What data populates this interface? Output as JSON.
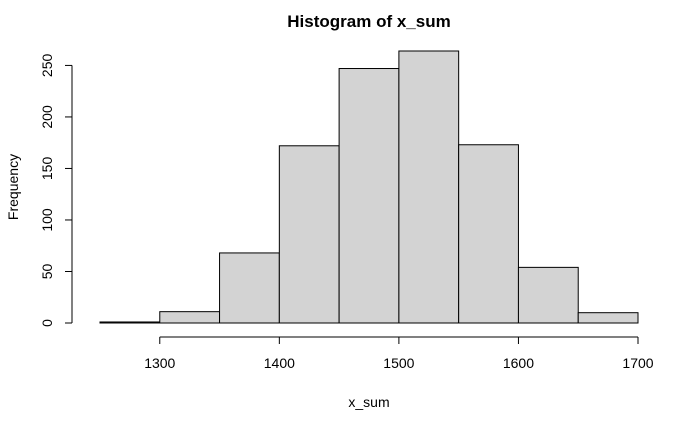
{
  "chart_data": {
    "type": "bar",
    "title": "Histogram of x_sum",
    "xlabel": "x_sum",
    "ylabel": "Frequency",
    "bins": [
      {
        "start": 1250,
        "end": 1300,
        "count": 1
      },
      {
        "start": 1300,
        "end": 1350,
        "count": 11
      },
      {
        "start": 1350,
        "end": 1400,
        "count": 68
      },
      {
        "start": 1400,
        "end": 1450,
        "count": 172
      },
      {
        "start": 1450,
        "end": 1500,
        "count": 247
      },
      {
        "start": 1500,
        "end": 1550,
        "count": 264
      },
      {
        "start": 1550,
        "end": 1600,
        "count": 173
      },
      {
        "start": 1600,
        "end": 1650,
        "count": 54
      },
      {
        "start": 1650,
        "end": 1700,
        "count": 10
      }
    ],
    "xticks": [
      1300,
      1400,
      1500,
      1600,
      1700
    ],
    "yticks": [
      0,
      50,
      100,
      150,
      200,
      250
    ],
    "xlim": [
      1250,
      1700
    ],
    "ylim": [
      0,
      264
    ],
    "colors": {
      "bar_fill": "#d3d3d3",
      "bar_stroke": "#000000"
    },
    "grid": false
  }
}
